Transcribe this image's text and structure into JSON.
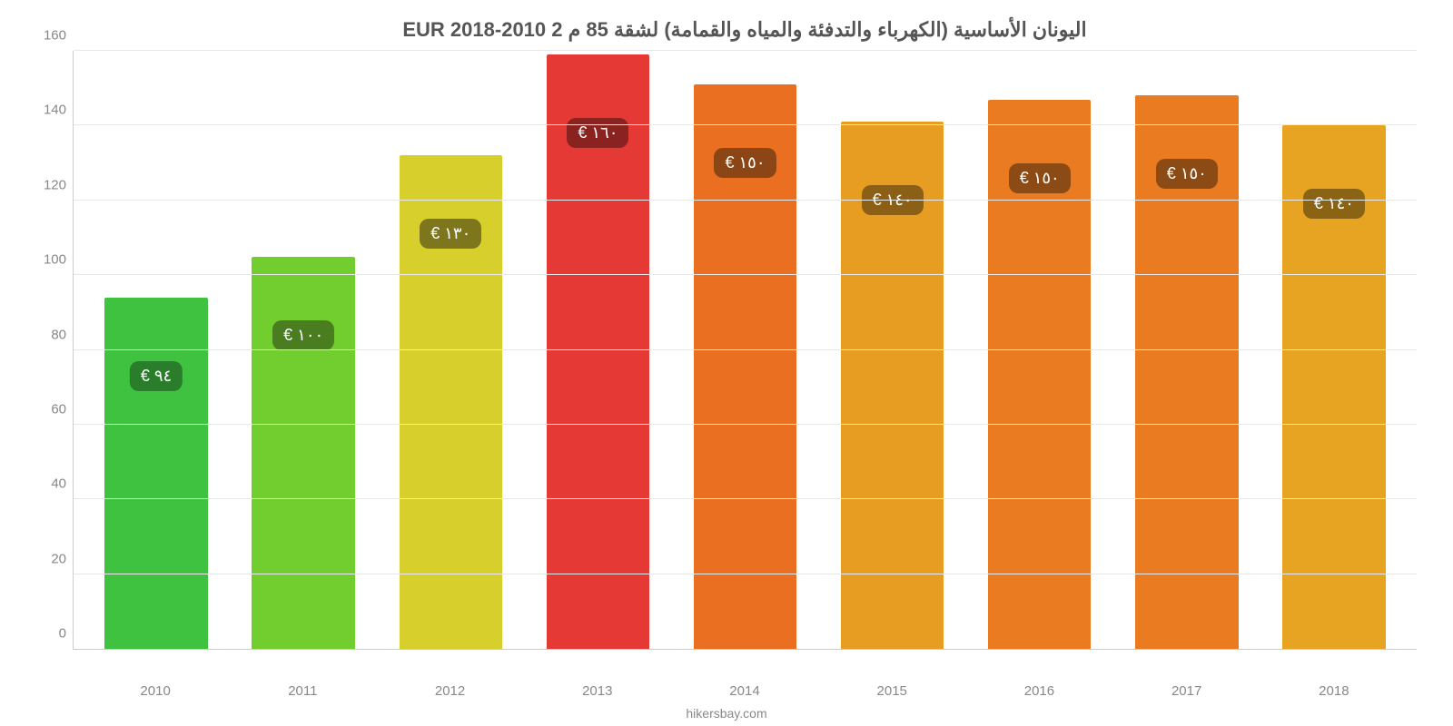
{
  "chart": {
    "type": "bar",
    "title": "اليونان الأساسية (الكهرباء والتدفئة والمياه والقمامة) لشقة 85 م 2 EUR 2018-2010",
    "title_fontsize": 22,
    "title_color": "#555555",
    "background_color": "#ffffff",
    "grid_color": "#e8e8e8",
    "axis_color": "#cccccc",
    "tick_label_color": "#888888",
    "tick_label_fontsize": 15,
    "ylim": [
      0,
      160
    ],
    "ytick_step": 20,
    "yticks": [
      0,
      20,
      40,
      60,
      80,
      100,
      120,
      140,
      160
    ],
    "bar_width_pct": 70,
    "bar_label_fontsize": 18,
    "bar_label_radius": 10,
    "bar_label_offset_from_top": 70,
    "categories": [
      "2010",
      "2011",
      "2012",
      "2013",
      "2014",
      "2015",
      "2016",
      "2017",
      "2018"
    ],
    "values": [
      94,
      105,
      132,
      159,
      151,
      141,
      147,
      148,
      140
    ],
    "display_labels": [
      "٩٤ €",
      "١٠٠ €",
      "١٣٠ €",
      "١٦٠ €",
      "١٥٠ €",
      "١٤٠ €",
      "١٥٠ €",
      "١٥٠ €",
      "١٤٠ €"
    ],
    "bar_colors": [
      "#3fc23f",
      "#72cd2e",
      "#d7cf2b",
      "#e53935",
      "#ea6f21",
      "#e79d22",
      "#ea7b21",
      "#ea7b21",
      "#e7a422"
    ],
    "label_bg_colors": [
      "#2a7d2a",
      "#4a7d1f",
      "#7d761c",
      "#8a2320",
      "#8c4515",
      "#8b5f15",
      "#8c4b15",
      "#8c4b15",
      "#8b6315"
    ],
    "attribution": "hikersbay.com",
    "attribution_fontsize": 14
  }
}
